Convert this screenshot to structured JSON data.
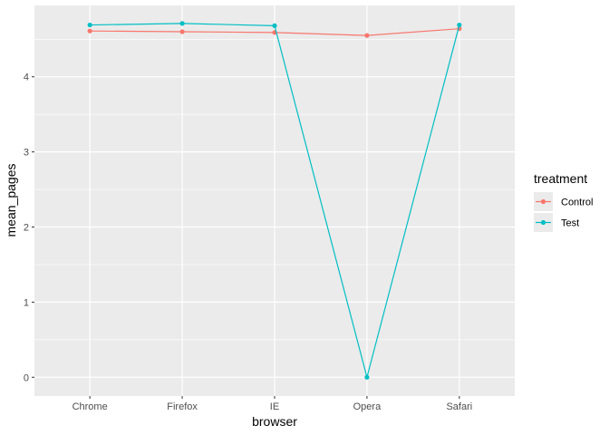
{
  "chart_data": {
    "type": "line",
    "title": "",
    "xlabel": "browser",
    "ylabel": "mean_pages",
    "categories": [
      "Chrome",
      "Firefox",
      "IE",
      "Opera",
      "Safari"
    ],
    "ylim": [
      -0.25,
      4.95
    ],
    "yticks": [
      0,
      1,
      2,
      3,
      4
    ],
    "grid": true,
    "legend": {
      "title": "treatment",
      "position": "right"
    },
    "series": [
      {
        "name": "Control",
        "color": "#F8766D",
        "values": [
          4.61,
          4.6,
          4.59,
          4.55,
          4.64
        ]
      },
      {
        "name": "Test",
        "color": "#00BFC4",
        "values": [
          4.69,
          4.71,
          4.68,
          0.0,
          4.69
        ]
      }
    ]
  }
}
